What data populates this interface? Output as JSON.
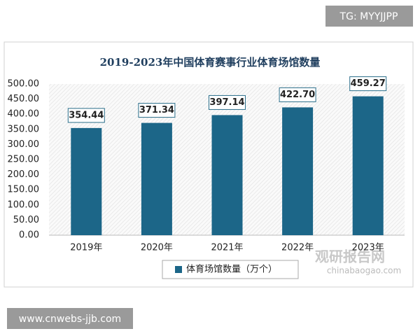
{
  "chart_data": {
    "type": "bar",
    "title": "2019-2023年中国体育赛事行业体育场馆数量",
    "categories": [
      "2019年",
      "2020年",
      "2021年",
      "2022年",
      "2023年"
    ],
    "series": [
      {
        "name": "体育场馆数量（万个）",
        "color": "#1c6688",
        "values": [
          354.44,
          371.34,
          397.14,
          422.7,
          459.27
        ],
        "value_labels": [
          "354.44",
          "371.34",
          "397.14",
          "422.70",
          "459.27"
        ]
      }
    ],
    "ylim": [
      0,
      500
    ],
    "yticks": [
      {
        "value": 0,
        "label": "0.00"
      },
      {
        "value": 50,
        "label": "50.00"
      },
      {
        "value": 100,
        "label": "100.00"
      },
      {
        "value": 150,
        "label": "150.00"
      },
      {
        "value": 200,
        "label": "200.00"
      },
      {
        "value": 250,
        "label": "250.00"
      },
      {
        "value": 300,
        "label": "300.00"
      },
      {
        "value": 350,
        "label": "350.00"
      },
      {
        "value": 400,
        "label": "400.00"
      },
      {
        "value": 450,
        "label": "450.00"
      },
      {
        "value": 500,
        "label": "500.00"
      }
    ],
    "legend": "bottom"
  },
  "overlays": {
    "tag": "TG: MYYJJPP",
    "url": "www.cnwebs-jjb.com",
    "watermark_name": "观研报告网",
    "watermark_url": "chinabaogao.com"
  }
}
